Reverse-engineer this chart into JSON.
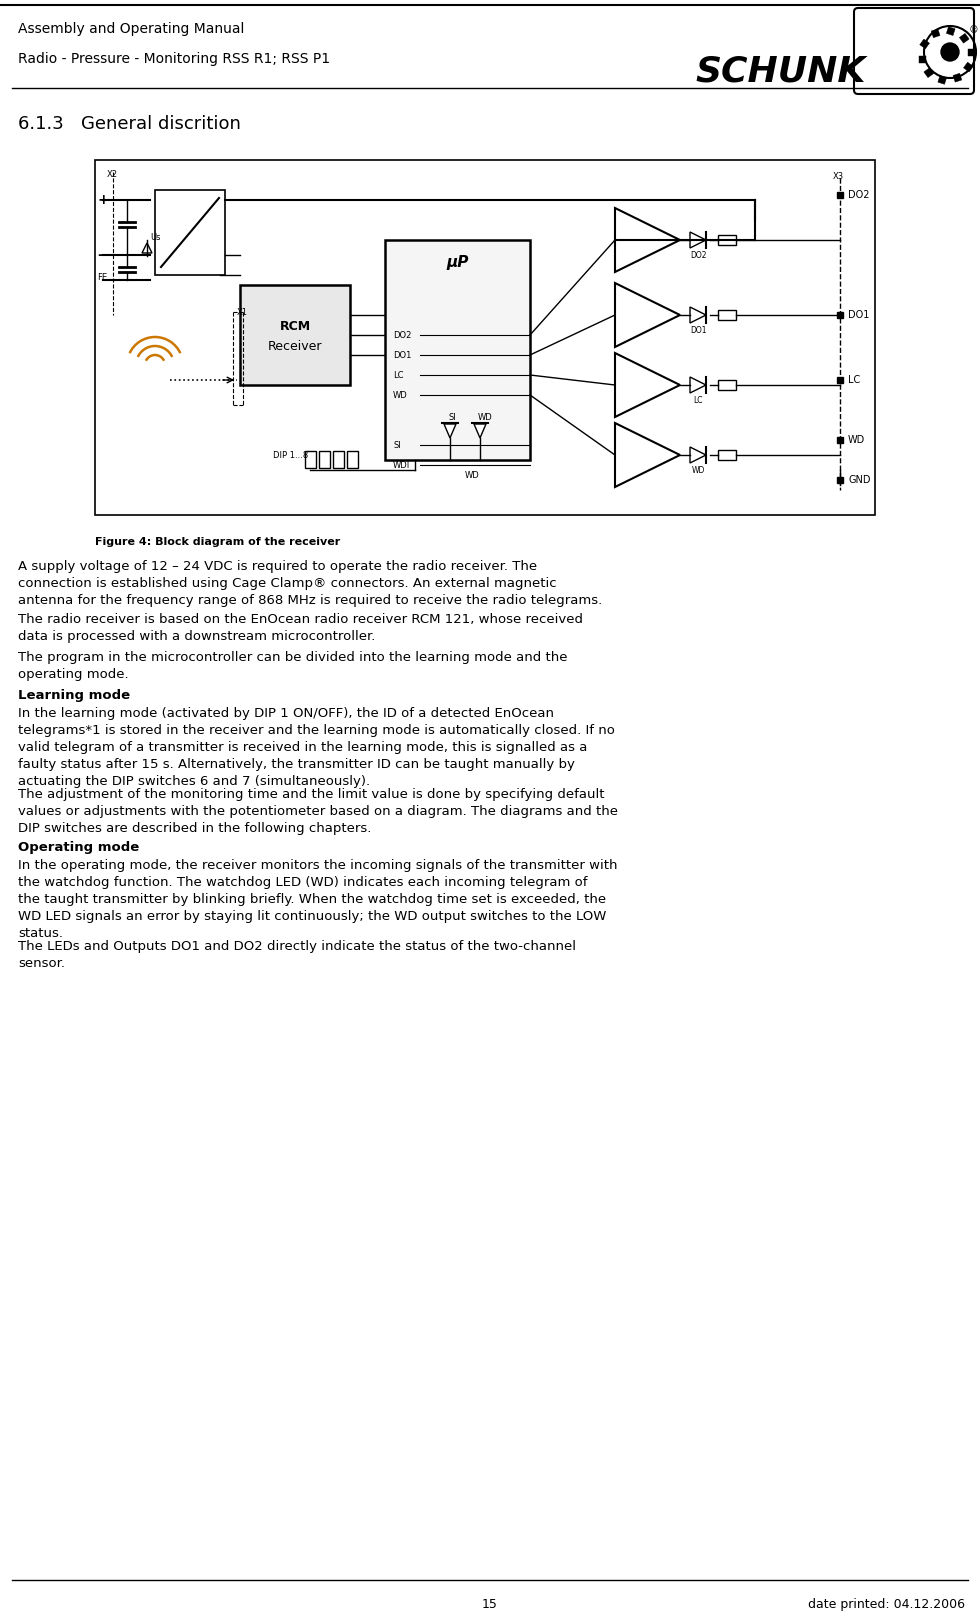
{
  "title_line1": "Assembly and Operating Manual",
  "title_line2": "Radio - Pressure - Monitoring RSS R1; RSS P1",
  "section_title": "6.1.3   General discrition",
  "figure_caption": "Figure 4: Block diagram of the receiver",
  "page_number": "15",
  "date_text": "date printed: 04.12.2006",
  "body_paragraphs": [
    "A supply voltage of 12 – 24 VDC is required to operate the radio receiver. The\nconnection is established using Cage Clamp® connectors. An external magnetic\nantenna for the frequency range of 868 MHz is required to receive the radio telegrams.",
    "The radio receiver is based on the EnOcean radio receiver RCM 121, whose received\ndata is processed with a downstream microcontroller.",
    "The program in the microcontroller can be divided into the learning mode and the\noperating mode."
  ],
  "learning_mode_title": "Learning mode",
  "learning_mode_paragraphs": [
    "In the learning mode (activated by DIP 1 ON/OFF), the ID of a detected EnOcean\ntelegrams*1 is stored in the receiver and the learning mode is automatically closed. If no\nvalid telegram of a transmitter is received in the learning mode, this is signalled as a\nfaulty status after 15 s. Alternatively, the transmitter ID can be taught manually by\nactuating the DIP switches 6 and 7 (simultaneously).",
    "The adjustment of the monitoring time and the limit value is done by specifying default\nvalues or adjustments with the potentiometer based on a diagram. The diagrams and the\nDIP switches are described in the following chapters."
  ],
  "operating_mode_title": "Operating mode",
  "operating_mode_paragraphs": [
    "In the operating mode, the receiver monitors the incoming signals of the transmitter with\nthe watchdog function. The watchdog LED (WD) indicates each incoming telegram of\nthe taught transmitter by blinking briefly. When the watchdog time set is exceeded, the\nWD LED signals an error by staying lit continuously; the WD output switches to the LOW\nstatus.",
    "The LEDs and Outputs DO1 and DO2 directly indicate the status of the two-channel\nsensor."
  ],
  "bg_color": "#ffffff",
  "text_color": "#000000",
  "body_font_size": 9.5,
  "section_font_size": 13
}
